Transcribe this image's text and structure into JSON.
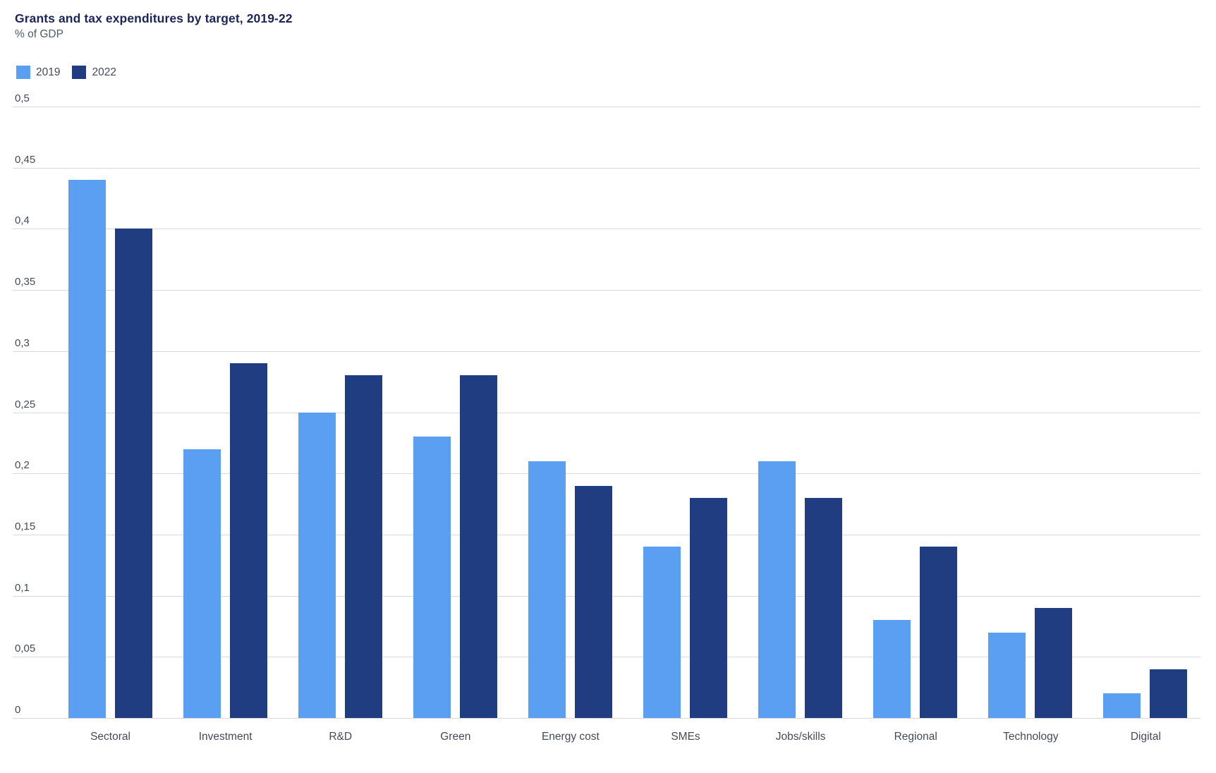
{
  "header": {
    "title": "Grants and tax expenditures by target, 2019-22",
    "subtitle": "% of GDP"
  },
  "colors": {
    "series_2019": "#5b9ff2",
    "series_2022": "#1f3d80",
    "gridline": "#d9d9d9",
    "axis_text": "#424a5a",
    "title_text": "#1b2559",
    "subtitle_text": "#4e5969"
  },
  "chart_data": {
    "type": "bar",
    "title": "Grants and tax expenditures by target, 2019-22",
    "ylabel": "% of GDP",
    "categories": [
      "Sectoral",
      "Investment",
      "R&D",
      "Green",
      "Energy cost",
      "SMEs",
      "Jobs/skills",
      "Regional",
      "Technology",
      "Digital"
    ],
    "series": [
      {
        "name": "2019",
        "color": "#5b9ff2",
        "values": [
          0.44,
          0.22,
          0.25,
          0.23,
          0.21,
          0.14,
          0.21,
          0.08,
          0.07,
          0.02
        ]
      },
      {
        "name": "2022",
        "color": "#1f3d80",
        "values": [
          0.4,
          0.29,
          0.28,
          0.28,
          0.19,
          0.18,
          0.18,
          0.14,
          0.09,
          0.04
        ]
      }
    ],
    "ylim": [
      0,
      0.5
    ],
    "ytick_step": 0.05,
    "ytick_labels": [
      "0",
      "0,05",
      "0,1",
      "0,15",
      "0,2",
      "0,25",
      "0,3",
      "0,35",
      "0,4",
      "0,45",
      "0,5"
    ],
    "decimal_separator": ",",
    "grid": true,
    "legend_position": "top-left"
  }
}
